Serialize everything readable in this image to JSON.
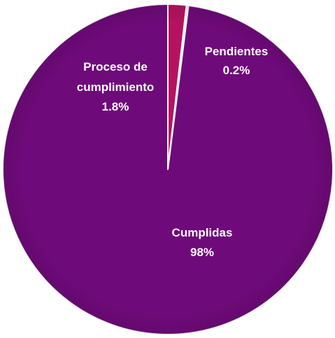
{
  "chart_data": {
    "type": "pie",
    "slices": [
      {
        "label_lines": [
          "Cumplidas"
        ],
        "value_label": "98%",
        "value": 98.0,
        "color": "#6f0a7a"
      },
      {
        "label_lines": [
          "Pendientes"
        ],
        "value_label": "0.2%",
        "value": 0.2,
        "color": "#e8e8e8"
      },
      {
        "label_lines": [
          "Proceso de",
          "cumplimiento"
        ],
        "value_label": "1.8%",
        "value": 1.8,
        "color": "#b5135f"
      }
    ],
    "legend": "none"
  }
}
